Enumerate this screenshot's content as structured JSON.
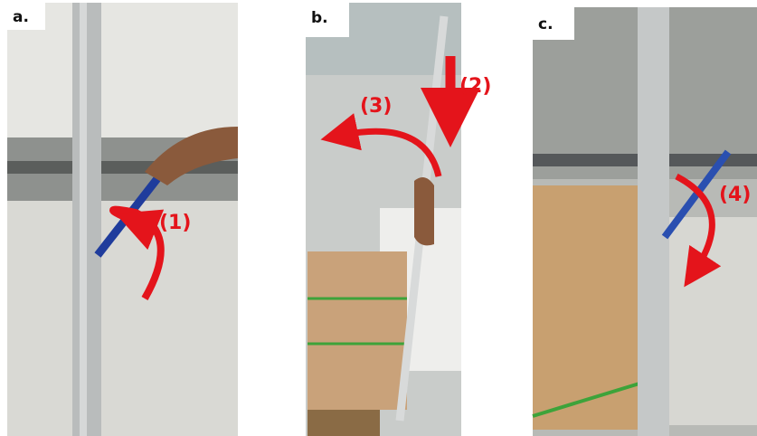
{
  "panels": [
    {
      "label": "a.",
      "annotations": [
        "(1)"
      ]
    },
    {
      "label": "b.",
      "annotations": [
        "(2)",
        "(3)"
      ]
    },
    {
      "label": "c.",
      "annotations": [
        "(4)"
      ]
    }
  ]
}
